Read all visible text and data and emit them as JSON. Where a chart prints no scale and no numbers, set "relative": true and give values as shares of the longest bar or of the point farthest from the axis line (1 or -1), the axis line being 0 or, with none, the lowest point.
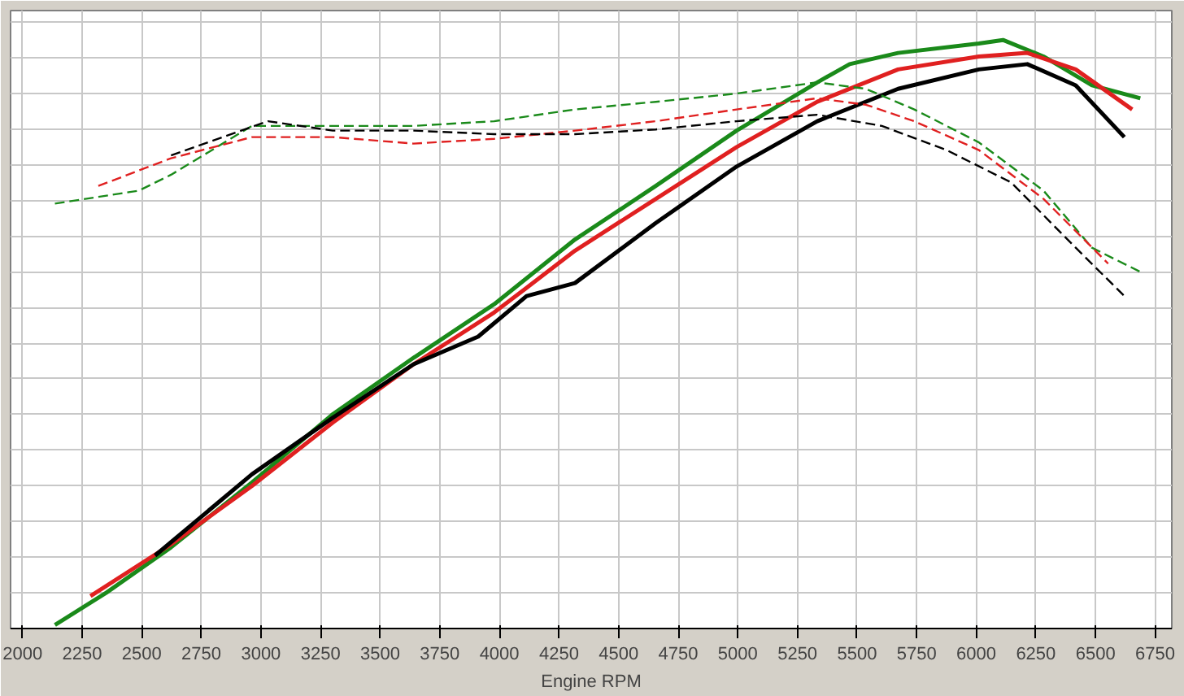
{
  "chart_data": {
    "type": "line",
    "relative": true,
    "xlabel": "Engine RPM",
    "xlim": [
      1950,
      6820
    ],
    "xticks": [
      2000,
      2250,
      2500,
      2750,
      3000,
      3250,
      3500,
      3750,
      4000,
      4250,
      4500,
      4750,
      5000,
      5250,
      5500,
      5750,
      6000,
      6250,
      6500,
      6750
    ],
    "grid": true,
    "series": [
      {
        "color": "#1a8a1a",
        "line_style": "solid",
        "x": [
          2136,
          2352,
          2623,
          2962,
          3301,
          3640,
          3978,
          4317,
          4656,
          4995,
          5333,
          5469,
          5672,
          6011,
          6112,
          6282,
          6485,
          6688
        ],
        "values": [
          0.006,
          0.061,
          0.138,
          0.248,
          0.364,
          0.46,
          0.551,
          0.661,
          0.752,
          0.846,
          0.928,
          0.959,
          0.978,
          0.994,
          1.0,
          0.972,
          0.923,
          0.901
        ]
      },
      {
        "color": "#e02020",
        "line_style": "solid",
        "x": [
          2285,
          2623,
          2962,
          3301,
          3640,
          3978,
          4114,
          4317,
          4656,
          4995,
          5333,
          5672,
          6011,
          6214,
          6417,
          6654
        ],
        "values": [
          0.055,
          0.143,
          0.242,
          0.35,
          0.449,
          0.537,
          0.579,
          0.642,
          0.73,
          0.818,
          0.895,
          0.95,
          0.972,
          0.978,
          0.95,
          0.882
        ]
      },
      {
        "color": "#000000",
        "line_style": "solid",
        "x": [
          2556,
          2962,
          3301,
          3640,
          3911,
          4114,
          4317,
          4656,
          4995,
          5333,
          5672,
          6011,
          6214,
          6417,
          6621
        ],
        "values": [
          0.124,
          0.262,
          0.358,
          0.449,
          0.496,
          0.565,
          0.587,
          0.689,
          0.785,
          0.862,
          0.917,
          0.95,
          0.959,
          0.923,
          0.835
        ]
      },
      {
        "color": "#1a8a1a",
        "line_style": "dashed",
        "x": [
          2136,
          2488,
          2623,
          2962,
          3301,
          3640,
          3978,
          4317,
          4656,
          4995,
          5333,
          5537,
          5740,
          6011,
          6282,
          6485,
          6688
        ],
        "values": [
          0.722,
          0.744,
          0.771,
          0.854,
          0.854,
          0.854,
          0.862,
          0.882,
          0.895,
          0.909,
          0.928,
          0.917,
          0.882,
          0.826,
          0.744,
          0.647,
          0.606
        ]
      },
      {
        "color": "#e02020",
        "line_style": "dashed",
        "x": [
          2318,
          2623,
          2962,
          3301,
          3640,
          3978,
          4317,
          4656,
          4995,
          5333,
          5537,
          5740,
          6011,
          6282,
          6553
        ],
        "values": [
          0.752,
          0.799,
          0.835,
          0.835,
          0.824,
          0.832,
          0.846,
          0.862,
          0.882,
          0.901,
          0.89,
          0.862,
          0.813,
          0.73,
          0.62
        ]
      },
      {
        "color": "#000000",
        "line_style": "dashed",
        "x": [
          2623,
          3030,
          3301,
          3640,
          3978,
          4317,
          4656,
          4995,
          5333,
          5604,
          5875,
          6146,
          6417,
          6621
        ],
        "values": [
          0.804,
          0.862,
          0.846,
          0.846,
          0.84,
          0.84,
          0.848,
          0.862,
          0.873,
          0.854,
          0.813,
          0.758,
          0.647,
          0.565
        ]
      }
    ]
  }
}
